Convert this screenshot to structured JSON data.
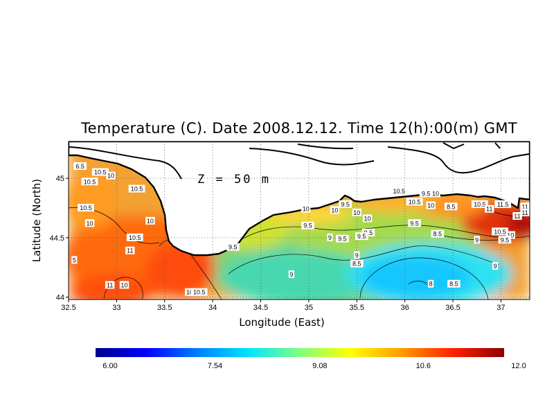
{
  "chart_data": {
    "type": "heatmap",
    "title": "Temperature (C). Date 2008.12.12. Time 12(h):00(m) GMT",
    "xlabel": "Longitude (East)",
    "ylabel": "Latitude (North)",
    "annotation": "Z = 50 m",
    "xlim": [
      32.5,
      37.3
    ],
    "ylim": [
      43.98,
      45.31
    ],
    "xticks": [
      "32.5",
      "33",
      "33.5",
      "34",
      "34.5",
      "35",
      "35.5",
      "36",
      "36.5",
      "37"
    ],
    "yticks": [
      "44",
      "44.5",
      "45"
    ],
    "grid": true,
    "colorbar": {
      "min": 6.0,
      "max": 12.0,
      "tick_labels": [
        "6.00",
        "7.54",
        "9.08",
        "10.6",
        "12.0"
      ],
      "colors": [
        "#00008c",
        "#0000ff",
        "#0080ff",
        "#00e5ff",
        "#80ff80",
        "#ffff00",
        "#ff9a00",
        "#ff2000",
        "#8c0000"
      ]
    },
    "contour_labels": [
      {
        "text": "6.5",
        "lon": 32.62,
        "lat": 45.1
      },
      {
        "text": "10.5",
        "lon": 32.83,
        "lat": 45.05
      },
      {
        "text": "10",
        "lon": 32.94,
        "lat": 45.02
      },
      {
        "text": "10.5",
        "lon": 32.72,
        "lat": 44.97
      },
      {
        "text": "10.5",
        "lon": 33.21,
        "lat": 44.91
      },
      {
        "text": "10.5",
        "lon": 32.68,
        "lat": 44.75
      },
      {
        "text": "10",
        "lon": 32.72,
        "lat": 44.62
      },
      {
        "text": "10",
        "lon": 33.35,
        "lat": 44.64
      },
      {
        "text": "10.5",
        "lon": 33.19,
        "lat": 44.5
      },
      {
        "text": "11",
        "lon": 33.14,
        "lat": 44.39
      },
      {
        "text": "5",
        "lon": 32.56,
        "lat": 44.31
      },
      {
        "text": "11",
        "lon": 32.93,
        "lat": 44.1
      },
      {
        "text": "10",
        "lon": 33.08,
        "lat": 44.1
      },
      {
        "text": "10",
        "lon": 33.76,
        "lat": 44.04
      },
      {
        "text": "10.5",
        "lon": 33.86,
        "lat": 44.04
      },
      {
        "text": "9.5",
        "lon": 34.21,
        "lat": 44.42
      },
      {
        "text": "10",
        "lon": 34.97,
        "lat": 44.74
      },
      {
        "text": "9.5",
        "lon": 35.38,
        "lat": 44.78
      },
      {
        "text": "10",
        "lon": 35.27,
        "lat": 44.73
      },
      {
        "text": "10",
        "lon": 35.5,
        "lat": 44.71
      },
      {
        "text": "10",
        "lon": 35.61,
        "lat": 44.66
      },
      {
        "text": "9.5",
        "lon": 34.99,
        "lat": 44.6
      },
      {
        "text": "9.5",
        "lon": 35.35,
        "lat": 44.49
      },
      {
        "text": "9.5",
        "lon": 35.62,
        "lat": 44.54
      },
      {
        "text": "9.5",
        "lon": 35.55,
        "lat": 44.51
      },
      {
        "text": "10.5",
        "lon": 35.94,
        "lat": 44.89
      },
      {
        "text": "10.5",
        "lon": 36.1,
        "lat": 44.8
      },
      {
        "text": "10",
        "lon": 36.27,
        "lat": 44.77
      },
      {
        "text": "10",
        "lon": 36.32,
        "lat": 44.87
      },
      {
        "text": "9.5",
        "lon": 36.22,
        "lat": 44.87
      },
      {
        "text": "9.5",
        "lon": 36.1,
        "lat": 44.62
      },
      {
        "text": "8.5",
        "lon": 36.34,
        "lat": 44.53
      },
      {
        "text": "8.5",
        "lon": 36.48,
        "lat": 44.76
      },
      {
        "text": "9",
        "lon": 35.5,
        "lat": 44.35
      },
      {
        "text": "8.5",
        "lon": 35.5,
        "lat": 44.28
      },
      {
        "text": "9",
        "lon": 35.22,
        "lat": 44.5
      },
      {
        "text": "9",
        "lon": 36.75,
        "lat": 44.48
      },
      {
        "text": "9",
        "lon": 34.82,
        "lat": 44.19
      },
      {
        "text": "9",
        "lon": 36.94,
        "lat": 44.26
      },
      {
        "text": "8",
        "lon": 36.27,
        "lat": 44.11
      },
      {
        "text": "8.5",
        "lon": 36.51,
        "lat": 44.11
      },
      {
        "text": "10.5",
        "lon": 36.78,
        "lat": 44.78
      },
      {
        "text": "11",
        "lon": 36.88,
        "lat": 44.74
      },
      {
        "text": "11.5",
        "lon": 37.02,
        "lat": 44.78
      },
      {
        "text": "11",
        "lon": 37.17,
        "lat": 44.68
      },
      {
        "text": "11",
        "lon": 37.25,
        "lat": 44.76
      },
      {
        "text": "11",
        "lon": 37.25,
        "lat": 44.71
      },
      {
        "text": "10.5",
        "lon": 36.99,
        "lat": 44.55
      },
      {
        "text": "10",
        "lon": 37.1,
        "lat": 44.52
      },
      {
        "text": "9.5",
        "lon": 37.04,
        "lat": 44.48
      }
    ]
  }
}
